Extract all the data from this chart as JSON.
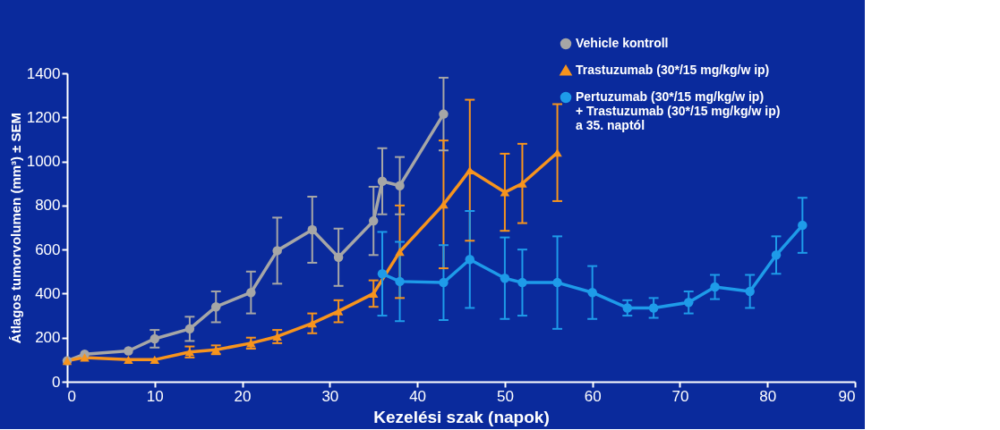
{
  "chart_data": {
    "type": "line",
    "xlabel": "Kezelési szak (napok)",
    "ylabel": "Átlagos tumorvolumen (mm³) ± SEM",
    "xlim": [
      0,
      90
    ],
    "xticks": [
      0,
      10,
      20,
      30,
      40,
      50,
      60,
      70,
      80,
      90
    ],
    "ylim": [
      0,
      1400
    ],
    "yticks": [
      0,
      200,
      400,
      600,
      800,
      1000,
      1200,
      1400
    ],
    "grid": false,
    "legend": "top right",
    "line_style": "solid",
    "series": [
      {
        "name": "Vehicle kontroll",
        "color": "#a6a6a6",
        "marker": "circle",
        "x": [
          0,
          2,
          7,
          10,
          14,
          17,
          21,
          24,
          28,
          31,
          35,
          36,
          38,
          43
        ],
        "values": [
          95,
          125,
          140,
          195,
          240,
          340,
          405,
          595,
          690,
          565,
          730,
          910,
          890,
          1215
        ],
        "errors": [
          null,
          null,
          null,
          40,
          55,
          70,
          95,
          150,
          150,
          130,
          155,
          150,
          130,
          165
        ]
      },
      {
        "name": "Trastuzumab  (30*/15 mg/kg/w ip)",
        "color": "#f7941d",
        "marker": "triangle",
        "x": [
          0,
          2,
          7,
          10,
          14,
          17,
          21,
          24,
          28,
          31,
          35,
          38,
          43,
          46,
          50,
          52,
          56
        ],
        "values": [
          95,
          110,
          100,
          100,
          135,
          145,
          175,
          205,
          265,
          320,
          400,
          590,
          805,
          960,
          860,
          900,
          1040
        ],
        "errors": [
          null,
          null,
          null,
          null,
          25,
          20,
          25,
          30,
          45,
          50,
          60,
          210,
          290,
          320,
          175,
          180,
          220
        ]
      },
      {
        "name": "Pertuzumab (30*/15 mg/kg/w ip)\n+ Trastuzumab (30*/15 mg/kg/w ip)\na 35. naptól",
        "color": "#1e9be9",
        "marker": "circle",
        "x": [
          36,
          38,
          43,
          46,
          50,
          52,
          56,
          60,
          64,
          67,
          71,
          74,
          78,
          81,
          84
        ],
        "values": [
          490,
          455,
          450,
          555,
          470,
          450,
          450,
          405,
          335,
          335,
          360,
          430,
          410,
          575,
          710
        ],
        "errors": [
          190,
          180,
          170,
          220,
          185,
          150,
          210,
          120,
          35,
          45,
          50,
          55,
          75,
          85,
          125
        ]
      }
    ]
  }
}
